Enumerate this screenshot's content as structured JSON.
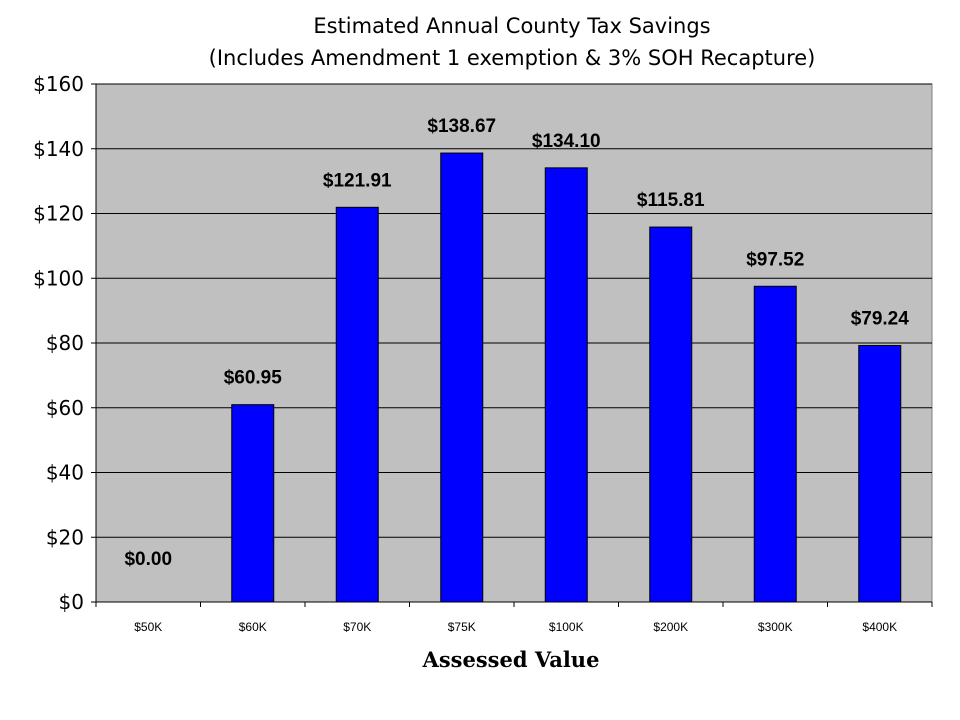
{
  "chart_data": {
    "type": "bar",
    "title": "Estimated Annual County Tax Savings",
    "subtitle": "(Includes Amendment 1 exemption & 3% SOH Recapture)",
    "xlabel": "Assessed Value",
    "ylabel": "",
    "categories": [
      "$50K",
      "$60K",
      "$70K",
      "$75K",
      "$100K",
      "$200K",
      "$300K",
      "$400K"
    ],
    "values": [
      0.0,
      60.95,
      121.91,
      138.67,
      134.1,
      115.81,
      97.52,
      79.24
    ],
    "value_labels": [
      "$0.00",
      "$60.95",
      "$121.91",
      "$138.67",
      "$134.10",
      "$115.81",
      "$97.52",
      "$79.24"
    ],
    "ylim": [
      0,
      160
    ],
    "yticks": [
      0,
      20,
      40,
      60,
      80,
      100,
      120,
      140,
      160
    ],
    "ytick_labels": [
      "$0",
      "$20",
      "$40",
      "$60",
      "$80",
      "$100",
      "$120",
      "$140",
      "$160"
    ],
    "grid": true,
    "legend": "none",
    "colors": {
      "bar": "#0000ff",
      "plot_background": "#c0c0c0",
      "gridline": "#000000"
    }
  }
}
